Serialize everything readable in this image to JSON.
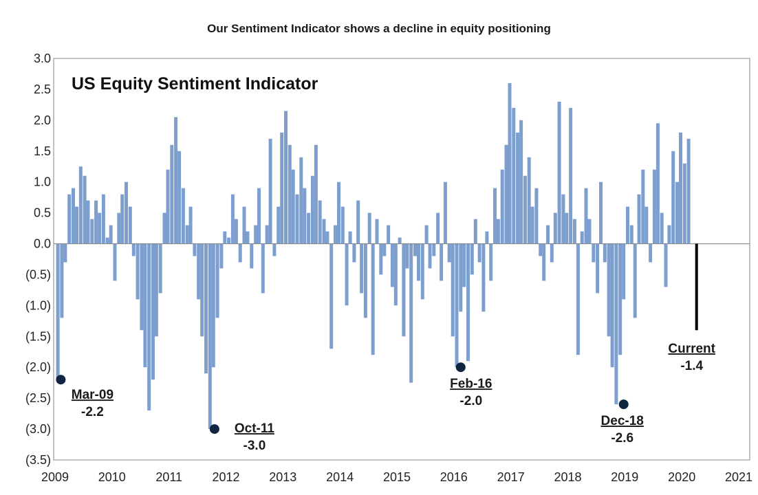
{
  "chart_data": {
    "type": "bar",
    "title": "Our Sentiment Indicator shows a decline in equity positioning",
    "inner_title": "US Equity Sentiment Indicator",
    "bar_color": "#7d9fd0",
    "current_bar_color": "#000000",
    "axis_color": "#999999",
    "ylim": [
      -3.5,
      3.0
    ],
    "xlim": [
      2009,
      2021
    ],
    "y_ticks": [
      3.0,
      2.5,
      2.0,
      1.5,
      1.0,
      0.5,
      0.0,
      -0.5,
      -1.0,
      -1.5,
      -2.0,
      -2.5,
      -3.0,
      -3.5
    ],
    "y_tick_labels": [
      "3.0",
      "2.5",
      "2.0",
      "1.5",
      "1.0",
      "0.5",
      "0.0",
      "(0.5)",
      "(1.0)",
      "(1.5)",
      "(2.0)",
      "(2.5)",
      "(3.0)",
      "(3.5)"
    ],
    "x_ticks": [
      2009,
      2010,
      2011,
      2012,
      2013,
      2014,
      2015,
      2016,
      2017,
      2018,
      2019,
      2020,
      2021
    ],
    "x_tick_labels": [
      "2009",
      "2010",
      "2011",
      "2012",
      "2013",
      "2014",
      "2015",
      "2016",
      "2017",
      "2018",
      "2019",
      "2020",
      "2021"
    ],
    "series_x": [
      2009.05,
      2009.12,
      2009.18,
      2009.25,
      2009.32,
      2009.38,
      2009.45,
      2009.52,
      2009.58,
      2009.65,
      2009.72,
      2009.78,
      2009.85,
      2009.92,
      2009.98,
      2010.05,
      2010.12,
      2010.18,
      2010.25,
      2010.32,
      2010.38,
      2010.45,
      2010.52,
      2010.58,
      2010.65,
      2010.72,
      2010.78,
      2010.85,
      2010.92,
      2010.98,
      2011.05,
      2011.12,
      2011.18,
      2011.25,
      2011.32,
      2011.38,
      2011.45,
      2011.52,
      2011.58,
      2011.65,
      2011.72,
      2011.78,
      2011.85,
      2011.92,
      2011.98,
      2012.05,
      2012.12,
      2012.18,
      2012.25,
      2012.32,
      2012.38,
      2012.45,
      2012.52,
      2012.58,
      2012.65,
      2012.72,
      2012.78,
      2012.85,
      2012.92,
      2012.98,
      2013.05,
      2013.12,
      2013.18,
      2013.25,
      2013.32,
      2013.38,
      2013.45,
      2013.52,
      2013.58,
      2013.65,
      2013.72,
      2013.78,
      2013.85,
      2013.92,
      2013.98,
      2014.05,
      2014.12,
      2014.18,
      2014.25,
      2014.32,
      2014.38,
      2014.45,
      2014.52,
      2014.58,
      2014.65,
      2014.72,
      2014.78,
      2014.85,
      2014.92,
      2014.98,
      2015.05,
      2015.12,
      2015.18,
      2015.25,
      2015.32,
      2015.38,
      2015.45,
      2015.52,
      2015.58,
      2015.65,
      2015.72,
      2015.78,
      2015.85,
      2015.92,
      2015.98,
      2016.05,
      2016.12,
      2016.18,
      2016.25,
      2016.32,
      2016.38,
      2016.45,
      2016.52,
      2016.58,
      2016.65,
      2016.72,
      2016.78,
      2016.85,
      2016.92,
      2016.98,
      2017.05,
      2017.12,
      2017.18,
      2017.25,
      2017.32,
      2017.38,
      2017.45,
      2017.52,
      2017.58,
      2017.65,
      2017.72,
      2017.78,
      2017.85,
      2017.92,
      2017.98,
      2018.05,
      2018.12,
      2018.18,
      2018.25,
      2018.32,
      2018.38,
      2018.45,
      2018.52,
      2018.58,
      2018.65,
      2018.72,
      2018.78,
      2018.85,
      2018.92,
      2018.98,
      2019.05,
      2019.12,
      2019.18,
      2019.25,
      2019.32,
      2019.38,
      2019.45,
      2019.52,
      2019.58,
      2019.65,
      2019.72,
      2019.78,
      2019.85,
      2019.92,
      2019.98,
      2020.05,
      2020.12,
      2020.18
    ],
    "series_y": [
      -2.2,
      -1.2,
      -0.3,
      0.8,
      0.9,
      0.6,
      1.25,
      1.1,
      0.7,
      0.4,
      0.7,
      0.5,
      0.8,
      0.1,
      0.3,
      -0.6,
      0.5,
      0.8,
      1.0,
      0.6,
      -0.2,
      -0.9,
      -1.4,
      -2.0,
      -2.7,
      -2.2,
      -1.5,
      -0.8,
      0.5,
      1.2,
      1.6,
      2.05,
      1.5,
      0.9,
      0.3,
      0.6,
      -0.2,
      -0.9,
      -1.5,
      -2.1,
      -3.0,
      -2.0,
      -1.2,
      -0.4,
      0.2,
      0.1,
      0.8,
      0.4,
      -0.3,
      0.6,
      0.2,
      -0.4,
      0.3,
      0.9,
      -0.8,
      0.3,
      1.7,
      -0.2,
      0.6,
      1.8,
      2.15,
      1.6,
      1.2,
      0.8,
      1.4,
      0.9,
      0.5,
      1.1,
      1.6,
      0.7,
      0.4,
      0.2,
      -1.7,
      0.3,
      1.0,
      0.6,
      -1.0,
      0.2,
      -0.3,
      0.7,
      -0.8,
      -1.2,
      0.5,
      -1.8,
      0.4,
      -0.5,
      -0.2,
      0.3,
      -0.7,
      -1.0,
      0.1,
      -1.5,
      -0.4,
      -2.25,
      -0.2,
      -0.6,
      -0.9,
      0.3,
      -0.4,
      -0.2,
      0.5,
      -0.6,
      1.0,
      -0.3,
      -1.5,
      -2.0,
      -1.1,
      -0.7,
      -1.9,
      -0.5,
      0.4,
      -0.3,
      -1.1,
      0.2,
      -0.6,
      0.9,
      0.4,
      1.2,
      1.6,
      2.6,
      2.2,
      1.8,
      2.0,
      1.1,
      1.4,
      0.6,
      0.9,
      -0.2,
      -0.6,
      0.3,
      -0.3,
      0.5,
      2.3,
      0.8,
      0.5,
      2.2,
      0.4,
      -1.8,
      0.2,
      0.9,
      0.4,
      -0.3,
      -0.8,
      1.0,
      -0.3,
      -1.5,
      -2.0,
      -2.6,
      -1.8,
      -0.9,
      0.6,
      0.3,
      -1.2,
      0.8,
      1.2,
      0.6,
      -0.3,
      1.2,
      1.95,
      0.5,
      -0.7,
      0.3,
      1.5,
      1.0,
      1.8,
      1.3,
      1.7
    ],
    "current": {
      "x": 2020.26,
      "y": -1.4
    },
    "annotations": [
      {
        "label": "Mar-09",
        "value": "-2.2",
        "x": 2009.15,
        "y": -2.2
      },
      {
        "label": "Oct-11",
        "value": "-3.0",
        "x": 2011.8,
        "y": -3.0
      },
      {
        "label": "Feb-16",
        "value": "-2.0",
        "x": 2016.12,
        "y": -2.0
      },
      {
        "label": "Dec-18",
        "value": "-2.6",
        "x": 2018.98,
        "y": -2.6
      },
      {
        "label": "Current",
        "value": "-1.4",
        "x": 2020.26,
        "y": -1.4
      }
    ]
  }
}
